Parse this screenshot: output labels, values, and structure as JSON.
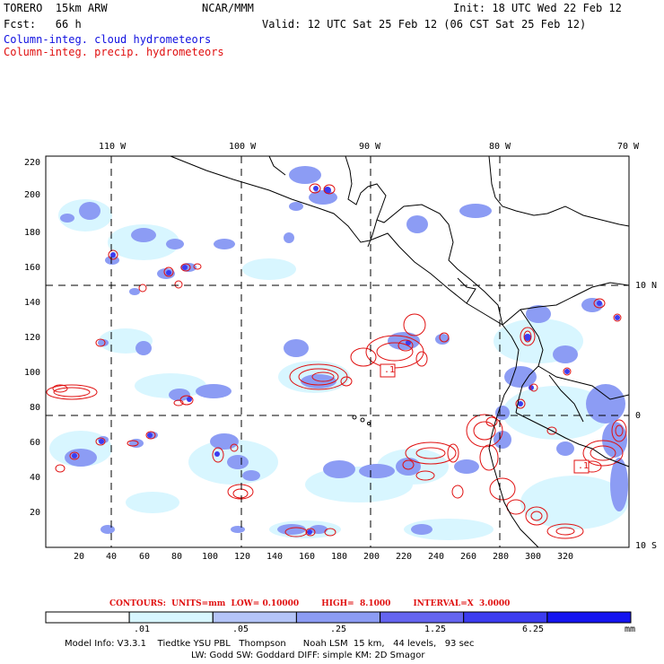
{
  "header": {
    "model": "TORERO  15km ARW",
    "org": "NCAR/MMM",
    "init": "Init: 18 UTC Wed 22 Feb 12",
    "fcst": "Fcst:   66 h",
    "valid": "Valid: 12 UTC Sat 25 Feb 12 (06 CST Sat 25 Feb 12)",
    "legend_cloud": "Column-integ. cloud hydrometeors",
    "legend_precip": "Column-integ. precip. hydrometeors"
  },
  "map": {
    "top_lon_labels": [
      "110 W",
      "100 W",
      "90 W",
      "80 W",
      "70 W"
    ],
    "right_lat_labels": [
      "10 N",
      "0",
      "10 S"
    ],
    "y_ticks": [
      "220",
      "200",
      "180",
      "160",
      "140",
      "120",
      "100",
      "80",
      "60",
      "40",
      "20"
    ],
    "x_ticks": [
      "20",
      "40",
      "60",
      "80",
      "100",
      "120",
      "140",
      "160",
      "180",
      "200",
      "220",
      "240",
      "260",
      "280",
      "300",
      "320"
    ],
    "markers": [
      ".1",
      ".1"
    ],
    "colors": {
      "cloud_light": "#d8f6ff",
      "cloud_mid": "#8c9cf4",
      "precip_contour": "#e01010",
      "grid": "#000000"
    }
  },
  "contours": {
    "text": "CONTOURS:  UNITS=mm  LOW= 0.10000        HIGH=  8.1000        INTERVAL=X  3.0000"
  },
  "colorbar": {
    "labels": [
      ".01",
      ".05",
      ".25",
      "1.25",
      "6.25"
    ],
    "unit": "mm",
    "colors": [
      "#ffffff",
      "#d8f6ff",
      "#b4c4f8",
      "#8c9cf4",
      "#6464f0",
      "#3c3cf0",
      "#1414f0"
    ]
  },
  "footer": {
    "line1": "Model Info: V3.3.1    Tiedtke YSU PBL   Thompson      Noah LSM  15 km,   44 levels,   93 sec",
    "line2": "LW: Godd SW: Goddard DIFF: simple KM: 2D Smagor"
  }
}
